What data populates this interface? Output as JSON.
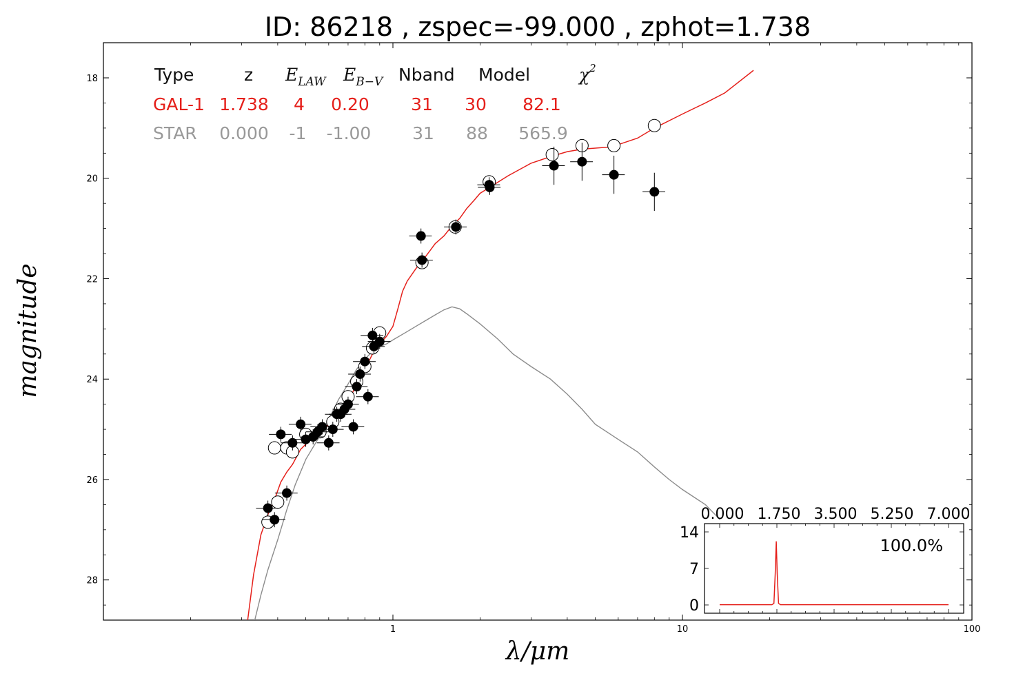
{
  "title": "ID:  86218 , zspec=-99.000 , zphot=1.738",
  "chart_data": {
    "type": "scatter",
    "xlabel": "λ/μm",
    "ylabel": "magnitude",
    "xscale": "log",
    "xlim": [
      0.1,
      100
    ],
    "ylim": [
      28.8,
      17.3
    ],
    "x_ticks": [
      {
        "value": 1,
        "label": "1"
      },
      {
        "value": 10,
        "label": "10"
      },
      {
        "value": 100,
        "label": "100"
      }
    ],
    "y_ticks": [
      {
        "value": 18,
        "label": "18"
      },
      {
        "value": 20,
        "label": "20"
      },
      {
        "value": 22,
        "label": "22"
      },
      {
        "value": 24,
        "label": "24"
      },
      {
        "value": 26,
        "label": "26"
      },
      {
        "value": 28,
        "label": "28"
      }
    ],
    "colors": {
      "galaxy": "#e5201b",
      "star": "#8c8c8c",
      "points": "#000000"
    },
    "table": {
      "header": {
        "type": "Type",
        "z": "z",
        "elaw_base": "E",
        "elaw_sub": "LAW",
        "ebv_base": "E",
        "ebv_sub": "B−V",
        "nband": "Nband",
        "model": "Model",
        "chi_base": "χ",
        "chi_sup": "2"
      },
      "rows": [
        {
          "type": "GAL-1",
          "z": "1.738",
          "elaw": "4",
          "ebv": "0.20",
          "nband": "31",
          "model": "30",
          "chi2": "82.1"
        },
        {
          "type": "STAR",
          "z": "0.000",
          "elaw": "-1",
          "ebv": "-1.00",
          "nband": "31",
          "model": "88",
          "chi2": "565.9"
        }
      ]
    },
    "series": [
      {
        "id": "gal-1-model",
        "kind": "line",
        "color": "#e5201b",
        "points": [
          [
            0.315,
            28.8
          ],
          [
            0.33,
            27.9
          ],
          [
            0.35,
            27.1
          ],
          [
            0.37,
            26.7
          ],
          [
            0.39,
            26.4
          ],
          [
            0.41,
            26.05
          ],
          [
            0.43,
            25.85
          ],
          [
            0.45,
            25.7
          ],
          [
            0.48,
            25.4
          ],
          [
            0.52,
            25.2
          ],
          [
            0.56,
            25.05
          ],
          [
            0.6,
            24.9
          ],
          [
            0.65,
            24.7
          ],
          [
            0.7,
            24.45
          ],
          [
            0.75,
            24.1
          ],
          [
            0.8,
            23.8
          ],
          [
            0.85,
            23.5
          ],
          [
            0.9,
            23.3
          ],
          [
            0.95,
            23.15
          ],
          [
            1.0,
            22.95
          ],
          [
            1.04,
            22.6
          ],
          [
            1.08,
            22.25
          ],
          [
            1.12,
            22.05
          ],
          [
            1.2,
            21.8
          ],
          [
            1.3,
            21.55
          ],
          [
            1.4,
            21.3
          ],
          [
            1.5,
            21.15
          ],
          [
            1.6,
            20.95
          ],
          [
            1.7,
            20.8
          ],
          [
            1.8,
            20.6
          ],
          [
            1.9,
            20.45
          ],
          [
            2.0,
            20.3
          ],
          [
            2.2,
            20.15
          ],
          [
            2.5,
            19.95
          ],
          [
            3.0,
            19.7
          ],
          [
            3.5,
            19.57
          ],
          [
            4.0,
            19.47
          ],
          [
            4.5,
            19.42
          ],
          [
            5.0,
            19.4
          ],
          [
            5.5,
            19.38
          ],
          [
            6.0,
            19.33
          ],
          [
            7.0,
            19.2
          ],
          [
            8.0,
            19.0
          ],
          [
            10.0,
            18.72
          ],
          [
            12.0,
            18.5
          ],
          [
            14.0,
            18.3
          ],
          [
            17.6,
            17.85
          ]
        ]
      },
      {
        "id": "star-model",
        "kind": "line",
        "color": "#8c8c8c",
        "points": [
          [
            0.33,
            28.9
          ],
          [
            0.35,
            28.3
          ],
          [
            0.37,
            27.8
          ],
          [
            0.4,
            27.2
          ],
          [
            0.43,
            26.6
          ],
          [
            0.46,
            26.1
          ],
          [
            0.5,
            25.6
          ],
          [
            0.55,
            25.2
          ],
          [
            0.6,
            24.8
          ],
          [
            0.65,
            24.4
          ],
          [
            0.7,
            24.1
          ],
          [
            0.75,
            23.8
          ],
          [
            0.8,
            23.6
          ],
          [
            0.85,
            23.45
          ],
          [
            0.9,
            23.35
          ],
          [
            0.95,
            23.3
          ],
          [
            1.0,
            23.22
          ],
          [
            1.1,
            23.08
          ],
          [
            1.2,
            22.95
          ],
          [
            1.3,
            22.83
          ],
          [
            1.4,
            22.72
          ],
          [
            1.5,
            22.62
          ],
          [
            1.6,
            22.56
          ],
          [
            1.7,
            22.6
          ],
          [
            1.8,
            22.7
          ],
          [
            2.0,
            22.9
          ],
          [
            2.3,
            23.2
          ],
          [
            2.6,
            23.5
          ],
          [
            3.0,
            23.75
          ],
          [
            3.5,
            24.0
          ],
          [
            4.0,
            24.3
          ],
          [
            4.5,
            24.6
          ],
          [
            5.0,
            24.9
          ],
          [
            6.0,
            25.2
          ],
          [
            7.0,
            25.45
          ],
          [
            8.0,
            25.75
          ],
          [
            9.0,
            26.0
          ],
          [
            10.0,
            26.2
          ],
          [
            12.0,
            26.5
          ],
          [
            13.5,
            26.8
          ]
        ]
      },
      {
        "id": "observed",
        "kind": "scatter",
        "marker": "circle-filled",
        "points": [
          [
            0.37,
            26.57
          ],
          [
            0.39,
            26.8
          ],
          [
            0.41,
            25.1
          ],
          [
            0.43,
            26.27
          ],
          [
            0.45,
            25.27
          ],
          [
            0.48,
            24.9
          ],
          [
            0.5,
            25.2
          ],
          [
            0.53,
            25.15
          ],
          [
            0.55,
            25.05
          ],
          [
            0.57,
            24.95
          ],
          [
            0.6,
            25.27
          ],
          [
            0.62,
            25.0
          ],
          [
            0.64,
            24.7
          ],
          [
            0.66,
            24.7
          ],
          [
            0.68,
            24.6
          ],
          [
            0.7,
            24.5
          ],
          [
            0.73,
            24.95
          ],
          [
            0.75,
            24.15
          ],
          [
            0.77,
            23.9
          ],
          [
            0.8,
            23.65
          ],
          [
            0.82,
            24.35
          ],
          [
            0.85,
            23.13
          ],
          [
            0.86,
            23.35
          ],
          [
            0.9,
            23.25
          ],
          [
            1.25,
            21.15
          ],
          [
            1.26,
            21.63
          ],
          [
            1.65,
            20.97
          ],
          [
            2.15,
            20.13
          ],
          [
            2.16,
            20.18
          ],
          [
            3.6,
            19.75
          ],
          [
            4.5,
            19.67
          ],
          [
            5.8,
            19.93
          ],
          [
            8.0,
            20.27
          ]
        ]
      },
      {
        "id": "model-mags",
        "kind": "scatter",
        "marker": "circle-open",
        "points": [
          [
            0.37,
            26.85
          ],
          [
            0.39,
            25.37
          ],
          [
            0.4,
            26.45
          ],
          [
            0.43,
            25.37
          ],
          [
            0.45,
            25.45
          ],
          [
            0.5,
            25.1
          ],
          [
            0.56,
            25.05
          ],
          [
            0.62,
            24.85
          ],
          [
            0.66,
            24.6
          ],
          [
            0.7,
            24.35
          ],
          [
            0.75,
            24.05
          ],
          [
            0.8,
            23.75
          ],
          [
            0.85,
            23.38
          ],
          [
            0.9,
            23.08
          ],
          [
            1.26,
            21.68
          ],
          [
            1.64,
            20.97
          ],
          [
            2.15,
            20.07
          ],
          [
            3.55,
            19.53
          ],
          [
            4.5,
            19.35
          ],
          [
            5.8,
            19.35
          ],
          [
            8.0,
            18.95
          ]
        ]
      }
    ],
    "inset": {
      "type": "line",
      "xlim": [
        0.0,
        7.0
      ],
      "ylim": [
        0,
        14
      ],
      "x_ticks": [
        {
          "value": 0.0,
          "label": "0.000"
        },
        {
          "value": 1.75,
          "label": "1.750"
        },
        {
          "value": 3.5,
          "label": "3.500"
        },
        {
          "value": 5.25,
          "label": "5.250"
        },
        {
          "value": 7.0,
          "label": "7.000"
        }
      ],
      "y_ticks": [
        {
          "value": 0,
          "label": "0"
        },
        {
          "value": 7,
          "label": "7"
        },
        {
          "value": 14,
          "label": "14"
        }
      ],
      "annotation": "100.0%",
      "color": "#e5201b",
      "points": [
        [
          0.0,
          0.05
        ],
        [
          1.6,
          0.05
        ],
        [
          1.66,
          0.3
        ],
        [
          1.7,
          6.0
        ],
        [
          1.73,
          12.2
        ],
        [
          1.76,
          6.0
        ],
        [
          1.8,
          0.3
        ],
        [
          1.86,
          0.05
        ],
        [
          7.0,
          0.05
        ]
      ]
    }
  }
}
